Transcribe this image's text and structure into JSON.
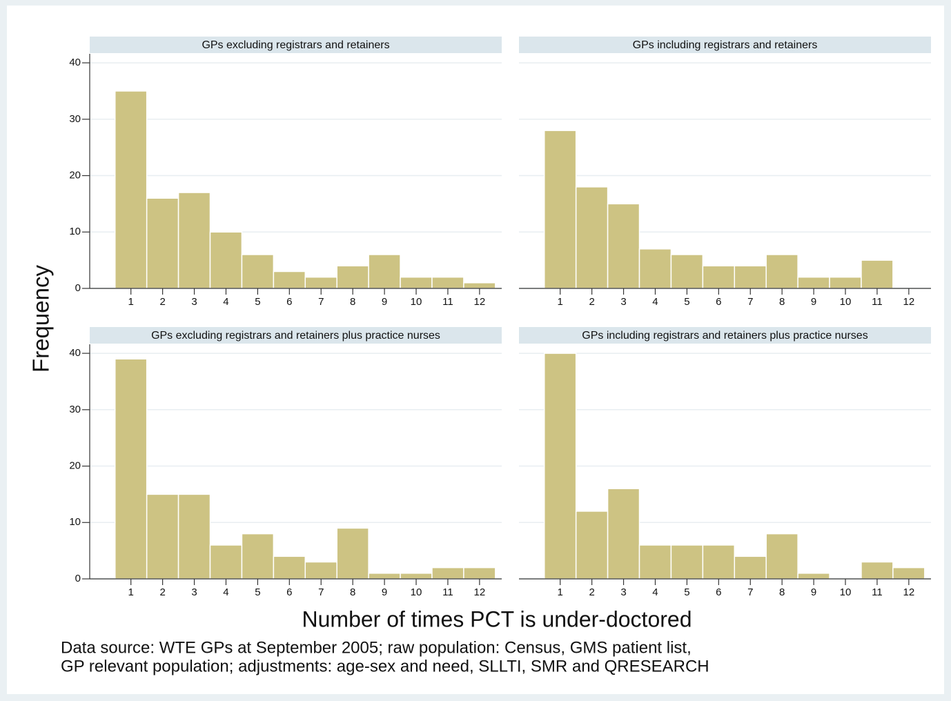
{
  "ylabel": "Frequency",
  "xlabel": "Number of times PCT is under-doctored",
  "note": [
    "Data source: WTE GPs at September 2005; raw  population: Census, GMS patient list,",
    "GP relevant population; adjustments: age-sex and need, SLLTI, SMR and QRESEARCH"
  ],
  "chart_data": [
    {
      "type": "bar",
      "title": "GPs excluding registrars and retainers",
      "color": "#cdc383",
      "grid": true,
      "x": [
        1,
        2,
        3,
        4,
        5,
        6,
        7,
        8,
        9,
        10,
        11,
        12
      ],
      "values": [
        35,
        16,
        17,
        10,
        6,
        3,
        2,
        4,
        6,
        2,
        2,
        1
      ],
      "xlim": [
        -0.3,
        12.7
      ],
      "xticks": [
        1,
        2,
        3,
        4,
        5,
        6,
        7,
        8,
        9,
        10,
        11,
        12
      ],
      "ylim": [
        0,
        41.6
      ],
      "yticks": [
        0,
        10,
        20,
        30,
        40
      ]
    },
    {
      "type": "bar",
      "title": "GPs including registrars and retainers",
      "color": "#cdc383",
      "grid": true,
      "x": [
        1,
        2,
        3,
        4,
        5,
        6,
        7,
        8,
        9,
        10,
        11,
        12
      ],
      "values": [
        28,
        18,
        15,
        7,
        6,
        4,
        4,
        6,
        2,
        2,
        5,
        0
      ],
      "xlim": [
        -0.3,
        12.7
      ],
      "xticks": [
        1,
        2,
        3,
        4,
        5,
        6,
        7,
        8,
        9,
        10,
        11,
        12
      ],
      "ylim": [
        0,
        41.6
      ],
      "yticks": [
        0,
        10,
        20,
        30,
        40
      ]
    },
    {
      "type": "bar",
      "title": "GPs excluding registrars and retainers plus practice nurses",
      "color": "#cdc383",
      "grid": true,
      "x": [
        1,
        2,
        3,
        4,
        5,
        6,
        7,
        8,
        9,
        10,
        11,
        12
      ],
      "values": [
        39,
        15,
        15,
        6,
        8,
        4,
        3,
        9,
        1,
        1,
        2,
        2
      ],
      "xlim": [
        -0.3,
        12.7
      ],
      "xticks": [
        1,
        2,
        3,
        4,
        5,
        6,
        7,
        8,
        9,
        10,
        11,
        12
      ],
      "ylim": [
        0,
        41.6
      ],
      "yticks": [
        0,
        10,
        20,
        30,
        40
      ]
    },
    {
      "type": "bar",
      "title": "GPs including registrars and retainers plus practice nurses",
      "color": "#cdc383",
      "grid": true,
      "x": [
        1,
        2,
        3,
        4,
        5,
        6,
        7,
        8,
        9,
        10,
        11,
        12
      ],
      "values": [
        40,
        12,
        16,
        6,
        6,
        6,
        4,
        8,
        1,
        0,
        3,
        2
      ],
      "xlim": [
        -0.3,
        12.7
      ],
      "xticks": [
        1,
        2,
        3,
        4,
        5,
        6,
        7,
        8,
        9,
        10,
        11,
        12
      ],
      "ylim": [
        0,
        41.6
      ],
      "yticks": [
        0,
        10,
        20,
        30,
        40
      ]
    }
  ]
}
